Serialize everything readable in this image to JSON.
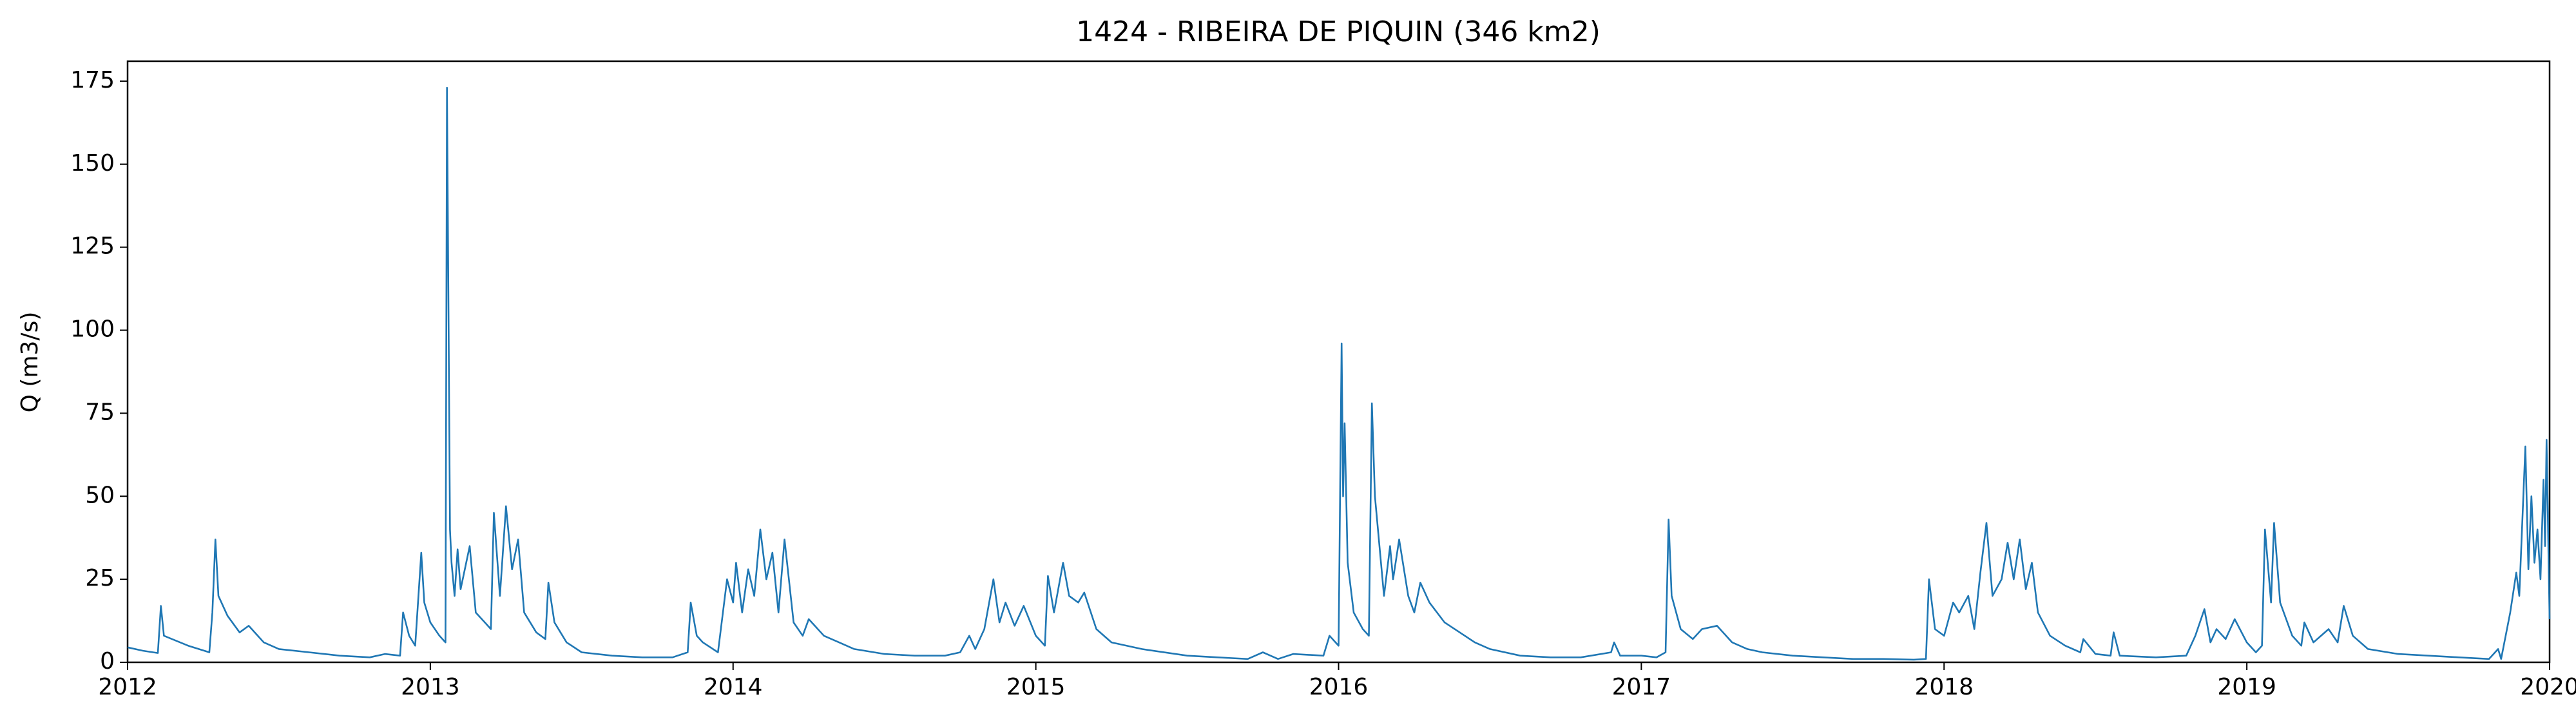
{
  "chart_data": {
    "type": "line",
    "title": "1424 - RIBEIRA DE PIQUIN (346 km2)",
    "y_label": "Q (m3/s)",
    "xlim": [
      2012,
      2020
    ],
    "xticks": [
      2012,
      2013,
      2014,
      2015,
      2016,
      2017,
      2018,
      2019,
      2020
    ],
    "ylim": [
      0,
      181
    ],
    "yticks": [
      0,
      25,
      50,
      75,
      100,
      125,
      150,
      175
    ],
    "grid": false,
    "series": [
      {
        "color": "#1f77b4",
        "x": [
          2012.0,
          2012.05,
          2012.1,
          2012.11,
          2012.12,
          2012.2,
          2012.27,
          2012.28,
          2012.29,
          2012.3,
          2012.33,
          2012.37,
          2012.4,
          2012.45,
          2012.5,
          2012.6,
          2012.7,
          2012.8,
          2012.85,
          2012.9,
          2012.91,
          2012.93,
          2012.95,
          2012.97,
          2012.98,
          2013.0,
          2013.03,
          2013.05,
          2013.055,
          2013.065,
          2013.07,
          2013.08,
          2013.09,
          2013.1,
          2013.13,
          2013.15,
          2013.18,
          2013.2,
          2013.21,
          2013.23,
          2013.25,
          2013.27,
          2013.29,
          2013.31,
          2013.35,
          2013.38,
          2013.39,
          2013.41,
          2013.45,
          2013.5,
          2013.6,
          2013.7,
          2013.8,
          2013.85,
          2013.86,
          2013.88,
          2013.9,
          2013.95,
          2013.98,
          2014.0,
          2014.01,
          2014.03,
          2014.05,
          2014.07,
          2014.09,
          2014.11,
          2014.13,
          2014.15,
          2014.17,
          2014.2,
          2014.23,
          2014.25,
          2014.3,
          2014.35,
          2014.4,
          2014.5,
          2014.6,
          2014.7,
          2014.75,
          2014.78,
          2014.8,
          2014.83,
          2014.86,
          2014.88,
          2014.9,
          2014.93,
          2014.96,
          2015.0,
          2015.03,
          2015.04,
          2015.06,
          2015.09,
          2015.11,
          2015.14,
          2015.16,
          2015.2,
          2015.25,
          2015.35,
          2015.5,
          2015.6,
          2015.7,
          2015.75,
          2015.8,
          2015.85,
          2015.95,
          2015.97,
          2016.0,
          2016.01,
          2016.015,
          2016.02,
          2016.03,
          2016.05,
          2016.08,
          2016.1,
          2016.11,
          2016.12,
          2016.14,
          2016.15,
          2016.17,
          2016.18,
          2016.2,
          2016.23,
          2016.25,
          2016.27,
          2016.3,
          2016.35,
          2016.4,
          2016.45,
          2016.5,
          2016.6,
          2016.7,
          2016.8,
          2016.9,
          2016.91,
          2016.93,
          2017.0,
          2017.05,
          2017.08,
          2017.09,
          2017.1,
          2017.13,
          2017.17,
          2017.2,
          2017.25,
          2017.3,
          2017.35,
          2017.4,
          2017.5,
          2017.6,
          2017.7,
          2017.8,
          2017.9,
          2017.94,
          2017.95,
          2017.97,
          2018.0,
          2018.03,
          2018.05,
          2018.08,
          2018.1,
          2018.12,
          2018.14,
          2018.16,
          2018.19,
          2018.21,
          2018.23,
          2018.25,
          2018.27,
          2018.29,
          2018.31,
          2018.35,
          2018.4,
          2018.45,
          2018.46,
          2018.5,
          2018.55,
          2018.56,
          2018.58,
          2018.7,
          2018.8,
          2018.83,
          2018.86,
          2018.88,
          2018.9,
          2018.93,
          2018.96,
          2019.0,
          2019.03,
          2019.05,
          2019.06,
          2019.08,
          2019.09,
          2019.11,
          2019.15,
          2019.18,
          2019.19,
          2019.22,
          2019.27,
          2019.3,
          2019.32,
          2019.35,
          2019.4,
          2019.5,
          2019.6,
          2019.7,
          2019.8,
          2019.83,
          2019.84,
          2019.87,
          2019.89,
          2019.9,
          2019.92,
          2019.93,
          2019.94,
          2019.95,
          2019.96,
          2019.97,
          2019.98,
          2019.985,
          2019.99,
          2020.0
        ],
        "values": [
          4.5,
          3.5,
          2.8,
          17,
          8,
          5,
          3,
          15,
          37,
          20,
          14,
          9,
          11,
          6,
          4,
          3,
          2,
          1.5,
          2.5,
          2,
          15,
          8,
          5,
          33,
          18,
          12,
          8,
          6,
          173,
          40,
          30,
          20,
          34,
          22,
          35,
          15,
          12,
          10,
          45,
          20,
          47,
          28,
          37,
          15,
          9,
          7,
          24,
          12,
          6,
          3,
          2,
          1.5,
          1.5,
          3,
          18,
          8,
          6,
          3,
          25,
          18,
          30,
          15,
          28,
          20,
          40,
          25,
          33,
          15,
          37,
          12,
          8,
          13,
          8,
          6,
          4,
          2.5,
          2,
          2,
          3,
          8,
          4,
          10,
          25,
          12,
          18,
          11,
          17,
          8,
          5,
          26,
          15,
          30,
          20,
          18,
          21,
          10,
          6,
          4,
          2,
          1.5,
          1,
          3,
          1,
          2.5,
          2,
          8,
          5,
          96,
          50,
          72,
          30,
          15,
          10,
          8,
          78,
          50,
          30,
          20,
          35,
          25,
          37,
          20,
          15,
          24,
          18,
          12,
          9,
          6,
          4,
          2,
          1.5,
          1.5,
          3,
          6,
          2,
          2,
          1.5,
          3,
          43,
          20,
          10,
          7,
          10,
          11,
          6,
          4,
          3,
          2,
          1.5,
          1,
          1,
          0.8,
          1,
          25,
          10,
          8,
          18,
          15,
          20,
          10,
          27,
          42,
          20,
          25,
          36,
          25,
          37,
          22,
          30,
          15,
          8,
          5,
          3,
          7,
          2.5,
          2,
          9,
          2,
          1.5,
          2,
          8,
          16,
          6,
          10,
          7,
          13,
          6,
          3,
          5,
          40,
          18,
          42,
          18,
          8,
          5,
          12,
          6,
          10,
          6,
          17,
          8,
          4,
          2.5,
          2,
          1.5,
          1,
          4,
          1,
          15,
          27,
          20,
          65,
          28,
          50,
          30,
          40,
          25,
          55,
          35,
          67,
          13
        ]
      }
    ]
  }
}
